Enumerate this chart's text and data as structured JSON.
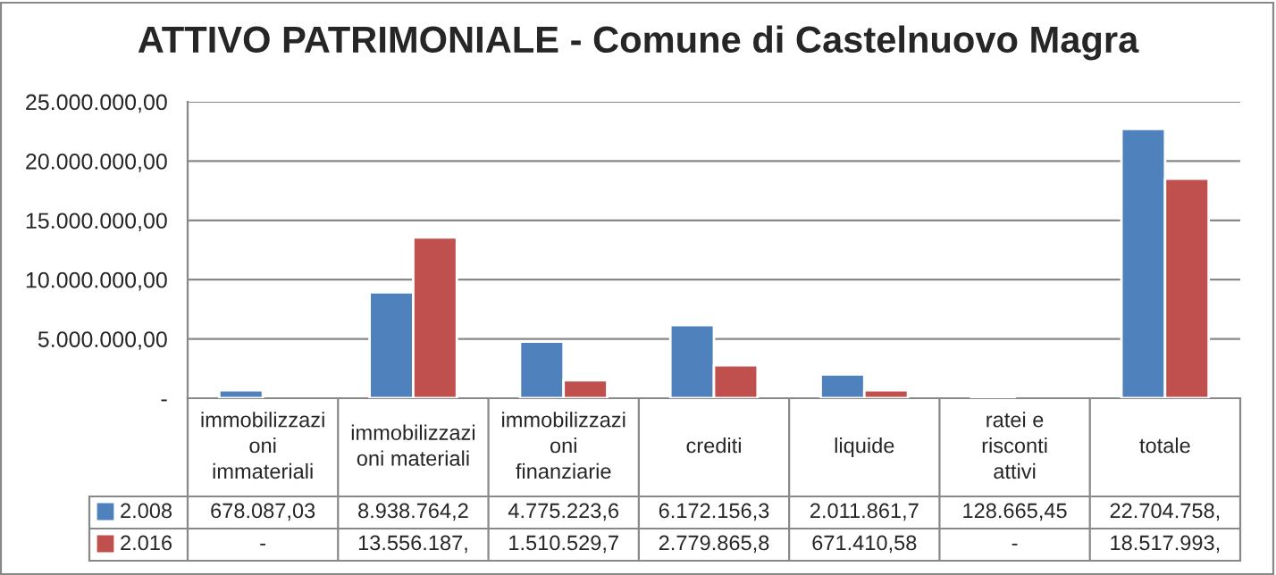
{
  "chart_data": {
    "type": "bar",
    "title": "ATTIVO PATRIMONIALE - Comune di Castelnuovo Magra",
    "categories": [
      "immobilizzazioni immateriali",
      "immobilizzazioni materiali",
      "immobilizzazioni finanziarie",
      "crediti",
      "liquide",
      "ratei e risconti attivi",
      "totale"
    ],
    "series": [
      {
        "name": "2.008",
        "color": "#4f81bd",
        "values": [
          678087.03,
          8938764.2,
          4775223.6,
          6172156.3,
          2011861.7,
          128665.45,
          22704758
        ],
        "value_labels": [
          "678.087,03",
          "8.938.764,2",
          "4.775.223,6",
          "6.172.156,3",
          "2.011.861,7",
          "128.665,45",
          "22.704.758,"
        ]
      },
      {
        "name": "2.016",
        "color": "#c0504d",
        "values": [
          null,
          13556187,
          1510529.7,
          2779865.8,
          671410.58,
          null,
          18517993
        ],
        "value_labels": [
          "-",
          "13.556.187,",
          "1.510.529,7",
          "2.779.865,8",
          "671.410,58",
          "-",
          "18.517.993,"
        ]
      }
    ],
    "ylim": [
      0,
      25000000
    ],
    "yticks": [
      {
        "value": 0,
        "label": "-"
      },
      {
        "value": 5000000,
        "label": "5.000.000,00"
      },
      {
        "value": 10000000,
        "label": "10.000.000,00"
      },
      {
        "value": 15000000,
        "label": "15.000.000,00"
      },
      {
        "value": 20000000,
        "label": "20.000.000,00"
      },
      {
        "value": 25000000,
        "label": "25.000.000,00"
      }
    ],
    "grid": "y",
    "legend": "bottom"
  }
}
